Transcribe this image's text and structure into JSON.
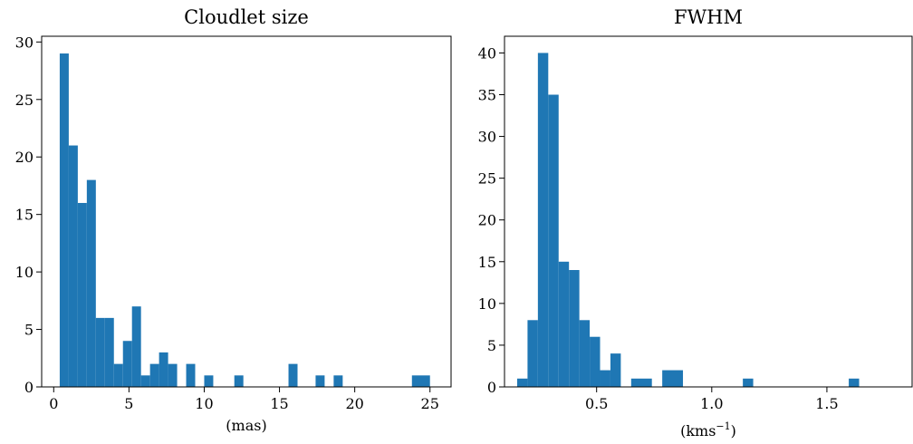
{
  "chart_data": [
    {
      "type": "bar",
      "title": "Cloudlet size",
      "xlabel": "(mas)",
      "ylabel": "",
      "xlim": [
        -0.8,
        26.4
      ],
      "ylim": [
        0,
        30.5
      ],
      "x_ticks": [
        0,
        5,
        10,
        15,
        20,
        25
      ],
      "y_ticks": [
        0,
        5,
        10,
        15,
        20,
        25,
        30
      ],
      "grid": false,
      "color": "#1f77b4",
      "bins": [
        {
          "x0": 0.4,
          "x1": 1.0,
          "value": 29
        },
        {
          "x0": 1.0,
          "x1": 1.6,
          "value": 21
        },
        {
          "x0": 1.6,
          "x1": 2.2,
          "value": 16
        },
        {
          "x0": 2.2,
          "x1": 2.8,
          "value": 18
        },
        {
          "x0": 2.8,
          "x1": 3.4,
          "value": 6
        },
        {
          "x0": 3.4,
          "x1": 4.0,
          "value": 6
        },
        {
          "x0": 4.0,
          "x1": 4.6,
          "value": 2
        },
        {
          "x0": 4.6,
          "x1": 5.2,
          "value": 4
        },
        {
          "x0": 5.2,
          "x1": 5.8,
          "value": 7
        },
        {
          "x0": 5.8,
          "x1": 6.4,
          "value": 1
        },
        {
          "x0": 6.4,
          "x1": 7.0,
          "value": 2
        },
        {
          "x0": 7.0,
          "x1": 7.6,
          "value": 3
        },
        {
          "x0": 7.6,
          "x1": 8.2,
          "value": 2
        },
        {
          "x0": 8.8,
          "x1": 9.4,
          "value": 2
        },
        {
          "x0": 10.0,
          "x1": 10.6,
          "value": 1
        },
        {
          "x0": 12.0,
          "x1": 12.6,
          "value": 1
        },
        {
          "x0": 15.6,
          "x1": 16.2,
          "value": 2
        },
        {
          "x0": 17.4,
          "x1": 18.0,
          "value": 1
        },
        {
          "x0": 18.6,
          "x1": 19.2,
          "value": 1
        },
        {
          "x0": 23.8,
          "x1": 25.0,
          "value": 1
        }
      ]
    },
    {
      "type": "bar",
      "title": "FWHM",
      "xlabel": "(kms",
      "xlabel_sup": "−1",
      "xlabel_end": ")",
      "ylabel": "",
      "xlim": [
        0.1,
        1.87
      ],
      "ylim": [
        0,
        42
      ],
      "x_ticks": [
        0.5,
        1.0,
        1.5
      ],
      "x_tick_labels": [
        "0.5",
        "1.0",
        "1.5"
      ],
      "y_ticks": [
        0,
        5,
        10,
        15,
        20,
        25,
        30,
        35,
        40
      ],
      "grid": false,
      "color": "#1f77b4",
      "bins": [
        {
          "x0": 0.155,
          "x1": 0.2,
          "value": 1
        },
        {
          "x0": 0.2,
          "x1": 0.245,
          "value": 8
        },
        {
          "x0": 0.245,
          "x1": 0.29,
          "value": 40
        },
        {
          "x0": 0.29,
          "x1": 0.335,
          "value": 35
        },
        {
          "x0": 0.335,
          "x1": 0.38,
          "value": 15
        },
        {
          "x0": 0.38,
          "x1": 0.425,
          "value": 14
        },
        {
          "x0": 0.425,
          "x1": 0.47,
          "value": 8
        },
        {
          "x0": 0.47,
          "x1": 0.515,
          "value": 6
        },
        {
          "x0": 0.515,
          "x1": 0.56,
          "value": 2
        },
        {
          "x0": 0.56,
          "x1": 0.605,
          "value": 4
        },
        {
          "x0": 0.65,
          "x1": 0.74,
          "value": 1
        },
        {
          "x0": 0.785,
          "x1": 0.875,
          "value": 2
        },
        {
          "x0": 1.135,
          "x1": 1.18,
          "value": 1
        },
        {
          "x0": 1.595,
          "x1": 1.64,
          "value": 1
        }
      ]
    }
  ]
}
